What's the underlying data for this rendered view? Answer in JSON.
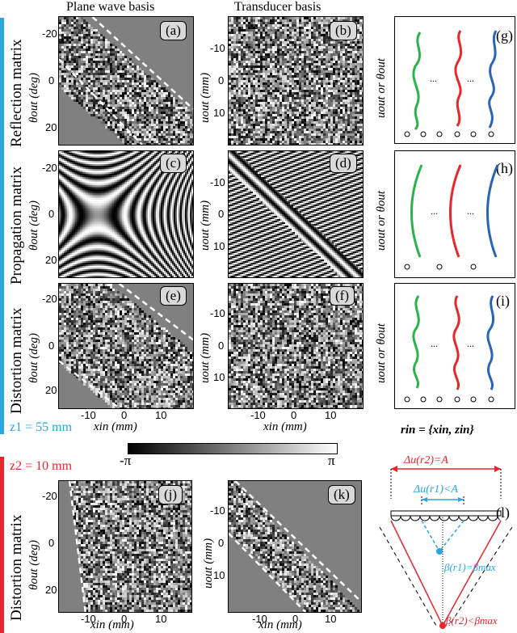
{
  "columns": {
    "col1": "Plane wave basis",
    "col2": "Transducer basis"
  },
  "rows": {
    "row1": "Reflection matrix",
    "row2": "Propagation matrix",
    "row3": "Distortion matrix",
    "row4": "Distortion matrix"
  },
  "panel_tags": [
    "(a)",
    "(b)",
    "(c)",
    "(d)",
    "(e)",
    "(f)",
    "(g)",
    "(h)",
    "(i)",
    "(j)",
    "(k)",
    "(l)"
  ],
  "axes": {
    "theta_label": "θout (deg)",
    "u_label": "uout (mm)",
    "x_label": "xin (mm)",
    "theta_ticks": [
      "-20",
      "0",
      "20"
    ],
    "u_ticks": [
      "-10",
      "0",
      "10"
    ],
    "x_ticks": [
      "-10",
      "0",
      "10"
    ],
    "schematic_label": "uout or θout"
  },
  "depths": {
    "z1": "z1 = 55 mm",
    "z2": "z2 = 10 mm"
  },
  "colorbar": {
    "min": "-π",
    "max": "π"
  },
  "rin": "rin = {xin, zin}",
  "ellipsis": "...",
  "schematic_l": {
    "outer": "Δu(r2)=A",
    "inner": "Δu(r1)<A",
    "beta1": "β(r1)=βmax",
    "beta2": "β(r2)<βmax"
  },
  "colors": {
    "green": "#2bb24c",
    "red": "#e8262b",
    "blue": "#2a64b6",
    "cyan": "#26a7e0"
  }
}
